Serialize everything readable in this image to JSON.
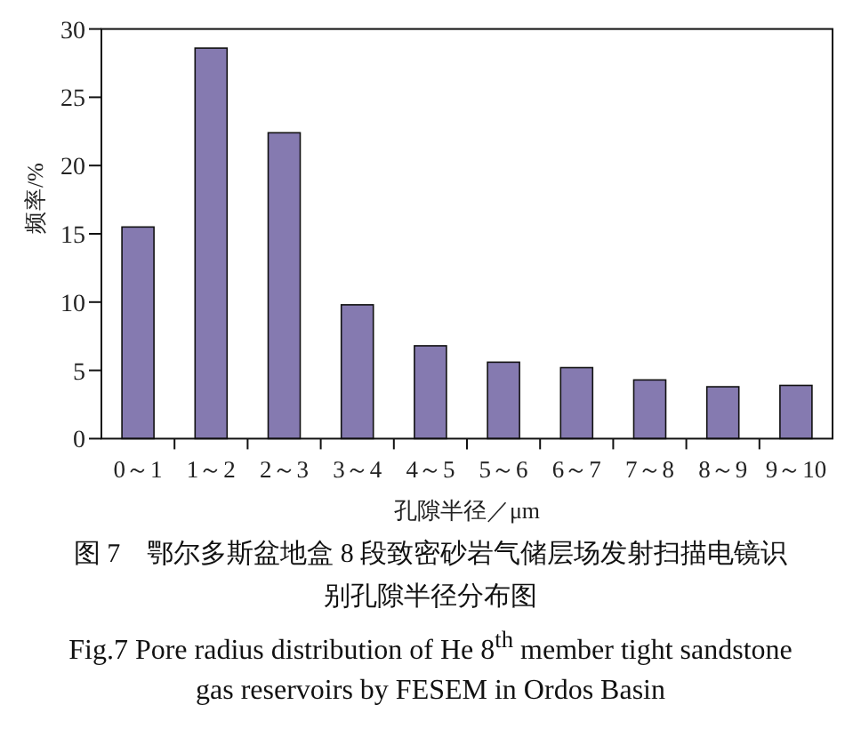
{
  "chart_data": {
    "type": "bar",
    "title": "图 7　鄂尔多斯盆地盒 8 段致密砂岩气储层场发射扫描电镜识别孔隙半径分布图",
    "subtitle": "Fig.7 Pore radius distribution of He 8$^{th}$ member tight sandstone gas reservoirs by FESEM in Ordos Basin",
    "xlabel": "孔隙半径／μm",
    "ylabel": "频率/%",
    "categories": [
      "0～1",
      "1～2",
      "2～3",
      "3～4",
      "4～5",
      "5～6",
      "6～7",
      "7～8",
      "8～9",
      "9～10"
    ],
    "values": [
      15.5,
      28.6,
      22.4,
      9.8,
      6.8,
      5.6,
      5.2,
      4.3,
      3.8,
      3.9
    ],
    "color": "#857ab0",
    "ylim": [
      0,
      30
    ],
    "yticks": [
      0,
      5,
      10,
      15,
      20,
      25,
      30
    ],
    "grid": false
  }
}
